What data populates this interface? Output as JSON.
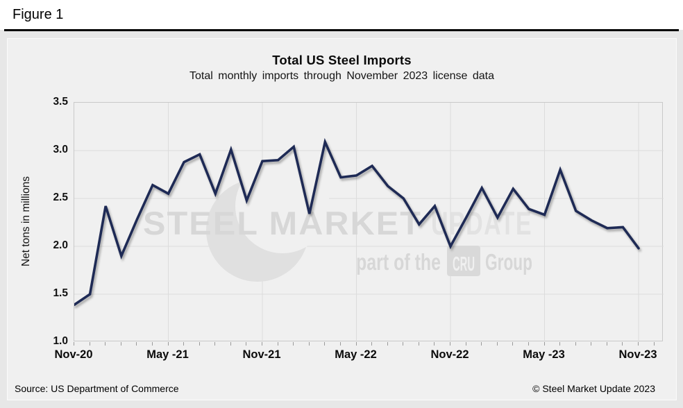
{
  "figure_label": "Figure 1",
  "chart": {
    "title": "Total US Steel Imports",
    "subtitle": "Total monthly imports through November 2023 license data",
    "ylabel": "Net tons in millions",
    "source": "Source: US Department of Commerce",
    "copyright": "© Steel Market Update 2023"
  },
  "watermark": {
    "brand_main": "STEEL MARKET",
    "brand_light": "UPDATE",
    "tagline_prefix": "part of the",
    "tagline_badge": "CRU",
    "tagline_suffix": "Group"
  },
  "colors": {
    "line": "#1e2a55",
    "grid": "#dcdcdc",
    "plot_background": "#f0f0f0",
    "crescent": "#e0e0e0",
    "watermark_text": "#d7d7d7",
    "watermark_text_light": "#e2e2e2",
    "watermark_badge": "#d9d9d9",
    "tick": "#9a9a9a"
  },
  "chart_data": {
    "type": "line",
    "title": "Total US Steel Imports",
    "subtitle": "Total monthly imports through November 2023 license data",
    "xlabel": "",
    "ylabel": "Net tons in millions",
    "ylim": [
      1.0,
      3.5
    ],
    "grid": true,
    "legend": false,
    "ytick_values": [
      3.5,
      3.0,
      2.5,
      2.0,
      1.5,
      1.0
    ],
    "ytick_labels": [
      "3.5",
      "3.0",
      "2.5",
      "2.0",
      "1.5",
      "1.0"
    ],
    "xtick_indices": [
      0,
      6,
      12,
      18,
      24,
      30,
      36
    ],
    "xtick_labels": [
      "Nov-20",
      "May -21",
      "Nov-21",
      "May -22",
      "Nov-22",
      "May -23",
      "Nov-23"
    ],
    "x": [
      "Nov-20",
      "Dec-20",
      "Jan-21",
      "Feb-21",
      "Mar-21",
      "Apr-21",
      "May-21",
      "Jun-21",
      "Jul-21",
      "Aug-21",
      "Sep-21",
      "Oct-21",
      "Nov-21",
      "Dec-21",
      "Jan-22",
      "Feb-22",
      "Mar-22",
      "Apr-22",
      "May-22",
      "Jun-22",
      "Jul-22",
      "Aug-22",
      "Sep-22",
      "Oct-22",
      "Nov-22",
      "Dec-22",
      "Jan-23",
      "Feb-23",
      "Mar-23",
      "Apr-23",
      "May-23",
      "Jun-23",
      "Jul-23",
      "Aug-23",
      "Sep-23",
      "Oct-23",
      "Nov-23"
    ],
    "series": [
      {
        "name": "Total monthly US steel imports (million net tons)",
        "values": [
          1.39,
          1.5,
          2.42,
          1.9,
          2.28,
          2.64,
          2.55,
          2.88,
          2.96,
          2.55,
          3.01,
          2.48,
          2.89,
          2.9,
          3.04,
          2.34,
          3.09,
          2.72,
          2.74,
          2.84,
          2.63,
          2.5,
          2.23,
          2.42,
          2.0,
          2.3,
          2.61,
          2.3,
          2.6,
          2.39,
          2.33,
          2.8,
          2.37,
          2.27,
          2.19,
          2.2,
          1.98
        ]
      }
    ]
  }
}
